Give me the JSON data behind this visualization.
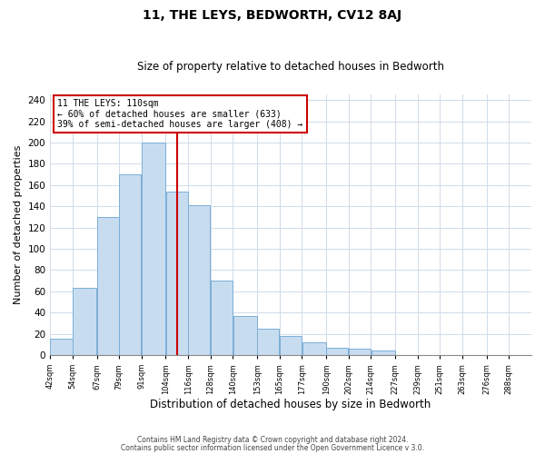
{
  "title": "11, THE LEYS, BEDWORTH, CV12 8AJ",
  "subtitle": "Size of property relative to detached houses in Bedworth",
  "xlabel": "Distribution of detached houses by size in Bedworth",
  "ylabel": "Number of detached properties",
  "bar_left_edges": [
    42,
    54,
    67,
    79,
    91,
    104,
    116,
    128,
    140,
    153,
    165,
    177,
    190,
    202,
    214,
    227,
    239,
    251,
    263,
    276
  ],
  "bar_heights": [
    15,
    63,
    130,
    170,
    200,
    154,
    141,
    70,
    37,
    25,
    18,
    12,
    7,
    6,
    4,
    0,
    0,
    0,
    0,
    0
  ],
  "bar_widths": [
    12,
    13,
    12,
    12,
    13,
    12,
    12,
    12,
    13,
    12,
    12,
    13,
    12,
    12,
    13,
    12,
    12,
    12,
    13,
    12
  ],
  "tick_labels": [
    "42sqm",
    "54sqm",
    "67sqm",
    "79sqm",
    "91sqm",
    "104sqm",
    "116sqm",
    "128sqm",
    "140sqm",
    "153sqm",
    "165sqm",
    "177sqm",
    "190sqm",
    "202sqm",
    "214sqm",
    "227sqm",
    "239sqm",
    "251sqm",
    "263sqm",
    "276sqm",
    "288sqm"
  ],
  "bar_color": "#c8dcf0",
  "bar_edge_color": "#7aaed6",
  "vline_x": 110,
  "vline_color": "#cc0000",
  "annotation_title": "11 THE LEYS: 110sqm",
  "annotation_line1": "← 60% of detached houses are smaller (633)",
  "annotation_line2": "39% of semi-detached houses are larger (408) →",
  "annotation_box_facecolor": "#ffffff",
  "annotation_box_edgecolor": "#cc0000",
  "ylim": [
    0,
    245
  ],
  "yticks": [
    0,
    20,
    40,
    60,
    80,
    100,
    120,
    140,
    160,
    180,
    200,
    220,
    240
  ],
  "footer1": "Contains HM Land Registry data © Crown copyright and database right 2024.",
  "footer2": "Contains public sector information licensed under the Open Government Licence v 3.0.",
  "background_color": "#ffffff",
  "grid_color": "#d0dce8"
}
